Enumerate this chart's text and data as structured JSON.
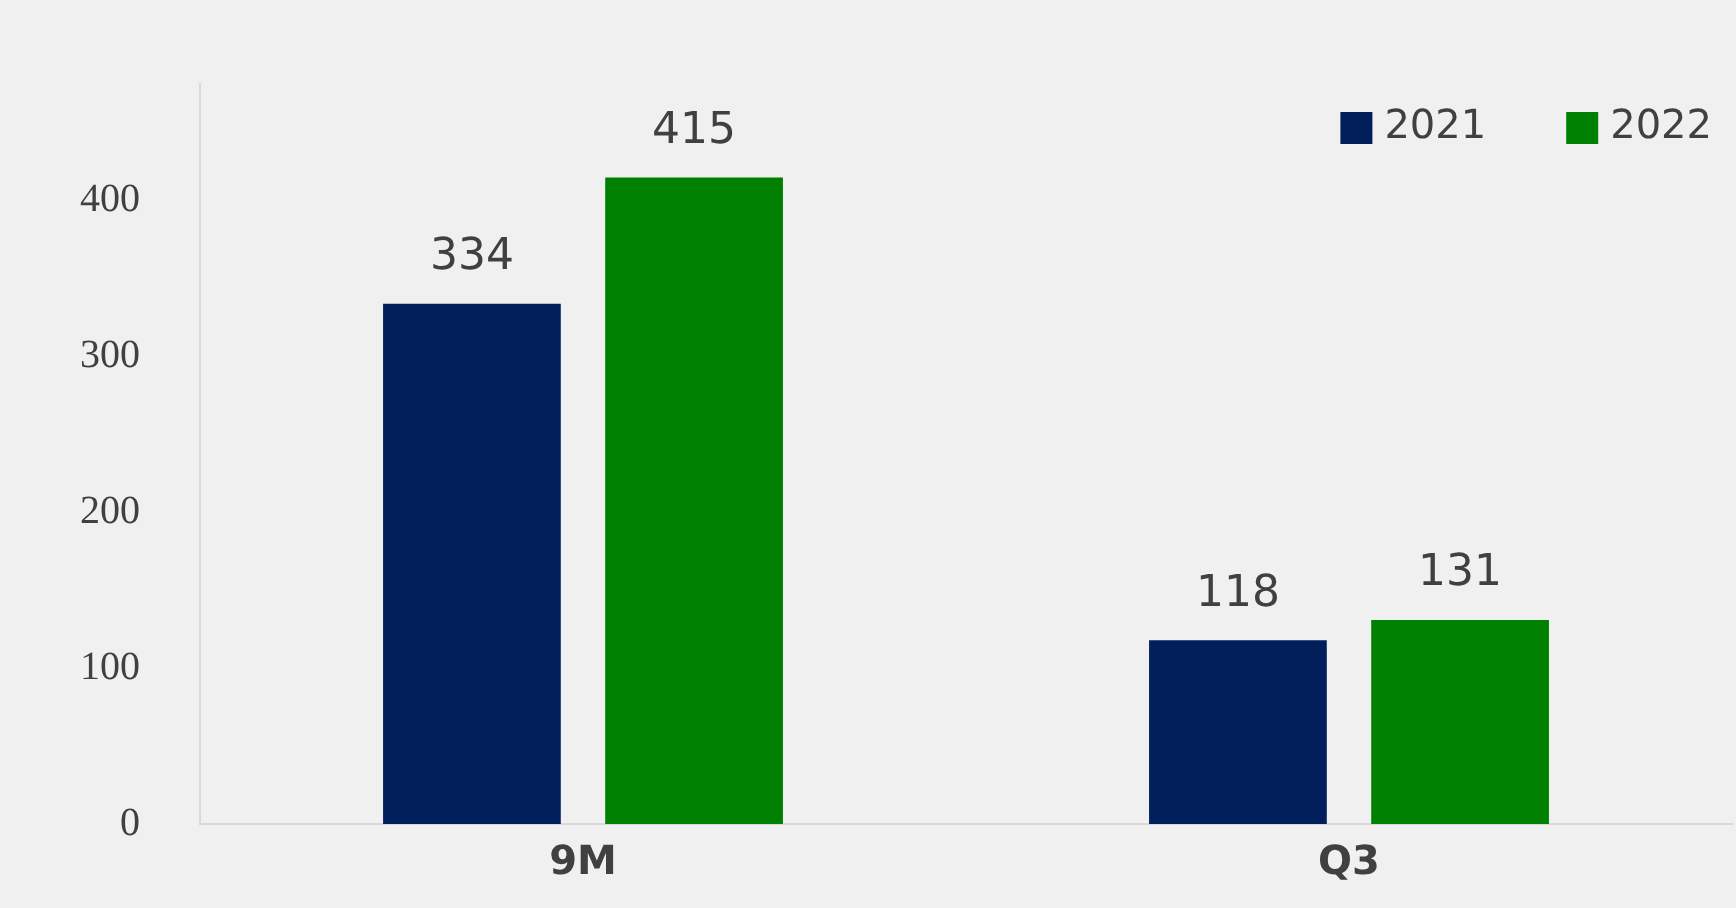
{
  "chart_data": {
    "type": "bar",
    "categories": [
      "9M",
      "Q3"
    ],
    "series": [
      {
        "name": "2021",
        "color": "#001f5b",
        "values": [
          334,
          118
        ]
      },
      {
        "name": "2022",
        "color": "#008000",
        "values": [
          415,
          131
        ]
      }
    ],
    "ylim": [
      0,
      475
    ],
    "yticks": [
      0,
      100,
      200,
      300,
      400
    ],
    "grid": false,
    "legend": "top right",
    "data_labels": true
  }
}
